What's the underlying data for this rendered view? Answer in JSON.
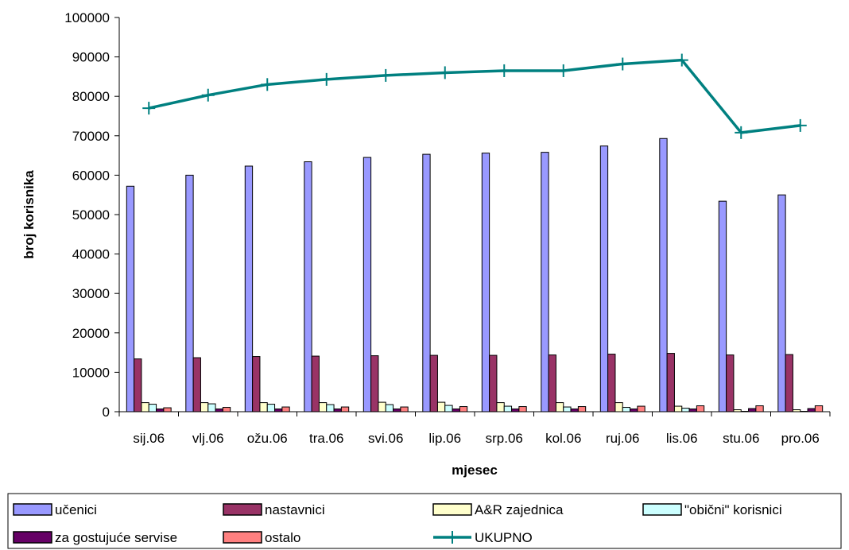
{
  "chart_data": {
    "type": "bar",
    "xlabel": "mjesec",
    "ylabel": "broj korisnika",
    "ylim": [
      0,
      100000
    ],
    "yticks": [
      "0",
      "10000",
      "20000",
      "30000",
      "40000",
      "50000",
      "60000",
      "70000",
      "80000",
      "90000",
      "100000"
    ],
    "categories": [
      "sij.06",
      "vlj.06",
      "ožu.06",
      "tra.06",
      "svi.06",
      "lip.06",
      "srp.06",
      "kol.06",
      "ruj.06",
      "lis.06",
      "stu.06",
      "pro.06"
    ],
    "grid": false,
    "legend_position": "bottom",
    "series": [
      {
        "name": "učenici",
        "type": "bar",
        "color": "#9999ff",
        "values": [
          57200,
          60000,
          62300,
          63400,
          64500,
          65300,
          65600,
          65800,
          67400,
          69300,
          53400,
          55000
        ]
      },
      {
        "name": "nastavnici",
        "type": "bar",
        "color": "#993366",
        "values": [
          13400,
          13700,
          14000,
          14100,
          14200,
          14300,
          14300,
          14400,
          14600,
          14800,
          14400,
          14500
        ]
      },
      {
        "name": "A&R zajednica",
        "type": "bar",
        "color": "#ffffcc",
        "values": [
          2300,
          2300,
          2300,
          2300,
          2400,
          2400,
          2300,
          2300,
          2300,
          1400,
          500,
          500
        ]
      },
      {
        "name": "\"obični\" korisnici",
        "type": "bar",
        "color": "#ccffff",
        "values": [
          1900,
          2000,
          1900,
          1800,
          1800,
          1600,
          1400,
          1200,
          1100,
          900,
          100,
          100
        ]
      },
      {
        "name": "za gostujuće servise",
        "type": "bar",
        "color": "#660066",
        "values": [
          700,
          700,
          700,
          700,
          700,
          700,
          700,
          700,
          700,
          700,
          800,
          800
        ]
      },
      {
        "name": "ostalo",
        "type": "bar",
        "color": "#ff8080",
        "values": [
          1000,
          1100,
          1200,
          1200,
          1200,
          1300,
          1300,
          1300,
          1400,
          1500,
          1500,
          1500
        ]
      },
      {
        "name": "UKUPNO",
        "type": "line",
        "color": "#008080",
        "values": [
          77000,
          80300,
          83000,
          84300,
          85300,
          86000,
          86500,
          86500,
          88200,
          89200,
          70800,
          72600
        ]
      }
    ]
  }
}
